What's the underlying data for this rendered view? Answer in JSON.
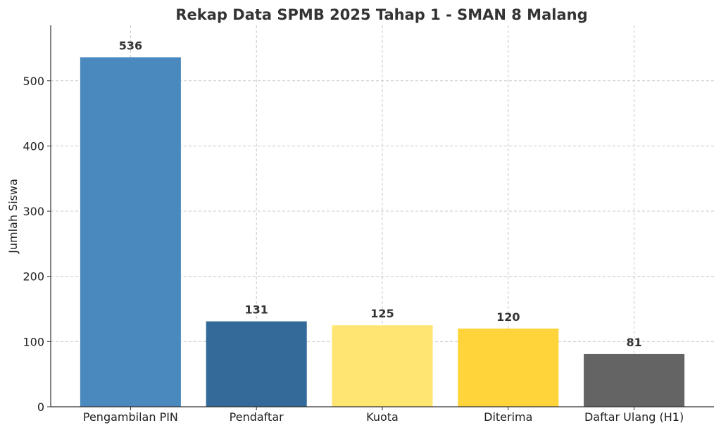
{
  "chart_data": {
    "type": "bar",
    "title": "Rekap Data SPMB 2025 Tahap 1 - SMAN 8 Malang",
    "xlabel": "",
    "ylabel": "Jumlah Siswa",
    "categories": [
      "Pengambilan PIN",
      "Pendaftar",
      "Kuota",
      "Diterima",
      "Daftar Ulang (H1)"
    ],
    "values": [
      536,
      131,
      125,
      120,
      81
    ],
    "data_labels": [
      "536",
      "131",
      "125",
      "120",
      "81"
    ],
    "bar_colors": [
      "#4a89bd",
      "#336a99",
      "#ffe672",
      "#ffd43b",
      "#646464"
    ],
    "ylim": [
      0,
      585
    ],
    "yticks": [
      0,
      100,
      200,
      300,
      400,
      500
    ],
    "ytick_labels": [
      "0",
      "100",
      "200",
      "300",
      "400",
      "500"
    ],
    "grid": true,
    "legend": "none"
  }
}
